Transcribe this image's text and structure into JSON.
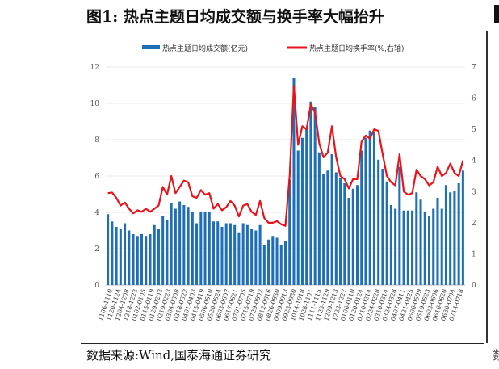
{
  "header": {
    "title": "图1:  热点主题日均成交额与换手率大幅抬升"
  },
  "footer": {
    "source": "数据来源:Wind,国泰海通证券研究",
    "tail": "数"
  },
  "colors": {
    "bar": "#1f6fb8",
    "line": "#e8141c",
    "text": "#333333"
  },
  "chart_data": {
    "type": "bar",
    "title": "",
    "legend": {
      "position": "top",
      "bar_label": "热点主题日均成交额(亿元)",
      "line_label": "热点主题日均换手率(%,右轴)"
    },
    "left_axis": {
      "ylim": [
        0,
        12
      ],
      "ticks": [
        0,
        2,
        4,
        6,
        8,
        10,
        12
      ]
    },
    "right_axis": {
      "ylim": [
        0,
        7
      ],
      "ticks": [
        0,
        1,
        2,
        3,
        4,
        5,
        6,
        7
      ]
    },
    "x_tick_labels": [
      "1106-1110",
      "1120-1124",
      "1204-1208",
      "1218-1222",
      "0102-0105",
      "0115-0119",
      "0129-0202",
      "0219-0223",
      "0304-0308",
      "0318-0322",
      "0401-0403",
      "0415-0419",
      "0506-0510",
      "0520-0524",
      "0603-0607",
      "0617-0621",
      "0701-0705",
      "0715-0719",
      "0729-0802",
      "0812-0816",
      "0826-0830",
      "0909-0913",
      "0923-0930",
      "1014-1018",
      "1028-1101",
      "1111-1115",
      "1125-1129",
      "1209-1213",
      "1223-1227",
      "0106-0110",
      "0120-0124",
      "0210-0214",
      "0224-0228",
      "0310-0314",
      "0324-0328",
      "0407-0411",
      "0421-0425",
      "0506-0509",
      "0519-0523",
      "0603-0606",
      "0616-0620",
      "0630-0704",
      "0714-0718"
    ],
    "series": [
      {
        "name": "热点主题日均成交额(亿元)",
        "kind": "bar",
        "axis": "left",
        "values": [
          3.9,
          3.5,
          3.2,
          3.1,
          3.4,
          3.0,
          2.8,
          2.7,
          2.8,
          2.7,
          2.8,
          3.3,
          3.1,
          3.8,
          3.6,
          4.5,
          4.2,
          4.6,
          4.4,
          4.3,
          4.0,
          3.4,
          4.0,
          4.0,
          4.0,
          3.5,
          3.5,
          3.2,
          3.4,
          3.4,
          3.3,
          2.9,
          3.4,
          3.3,
          3.1,
          3.0,
          3.3,
          2.2,
          2.5,
          2.7,
          2.6,
          2.2,
          2.4,
          5.8,
          11.4,
          7.4,
          8.1,
          8.6,
          10.1,
          9.8,
          7.3,
          6.1,
          6.3,
          7.2,
          6.2,
          5.9,
          5.6,
          4.8,
          5.3,
          5.5,
          7.4,
          8.1,
          8.5,
          8.4,
          6.9,
          6.4,
          5.7,
          4.4,
          4.2,
          6.5,
          4.1,
          4.1,
          4.1,
          5.1,
          4.7,
          4.0,
          3.8,
          4.2,
          4.8,
          4.2,
          5.5,
          5.1,
          5.2,
          5.6,
          6.3
        ]
      },
      {
        "name": "热点主题日均换手率(%,右轴)",
        "kind": "line",
        "axis": "right",
        "values": [
          2.95,
          2.97,
          2.8,
          2.55,
          2.65,
          2.45,
          2.3,
          2.4,
          2.35,
          2.45,
          2.35,
          2.45,
          2.55,
          3.15,
          2.9,
          3.5,
          2.95,
          3.15,
          3.35,
          3.3,
          2.85,
          2.8,
          3.05,
          2.9,
          2.95,
          2.45,
          2.6,
          2.4,
          2.5,
          2.7,
          2.55,
          2.2,
          2.55,
          2.6,
          2.35,
          2.25,
          2.7,
          2.15,
          2.0,
          2.0,
          2.05,
          1.95,
          1.9,
          3.5,
          6.4,
          4.5,
          5.1,
          5.0,
          5.8,
          5.55,
          4.55,
          4.1,
          4.25,
          5.1,
          4.1,
          3.5,
          3.4,
          3.1,
          3.4,
          3.4,
          4.6,
          4.8,
          4.7,
          5.0,
          4.95,
          4.2,
          3.5,
          3.3,
          3.2,
          4.2,
          3.0,
          2.9,
          2.95,
          3.7,
          3.5,
          3.4,
          3.2,
          3.3,
          3.8,
          3.5,
          3.6,
          3.9,
          3.6,
          3.5,
          4.0
        ]
      }
    ]
  }
}
